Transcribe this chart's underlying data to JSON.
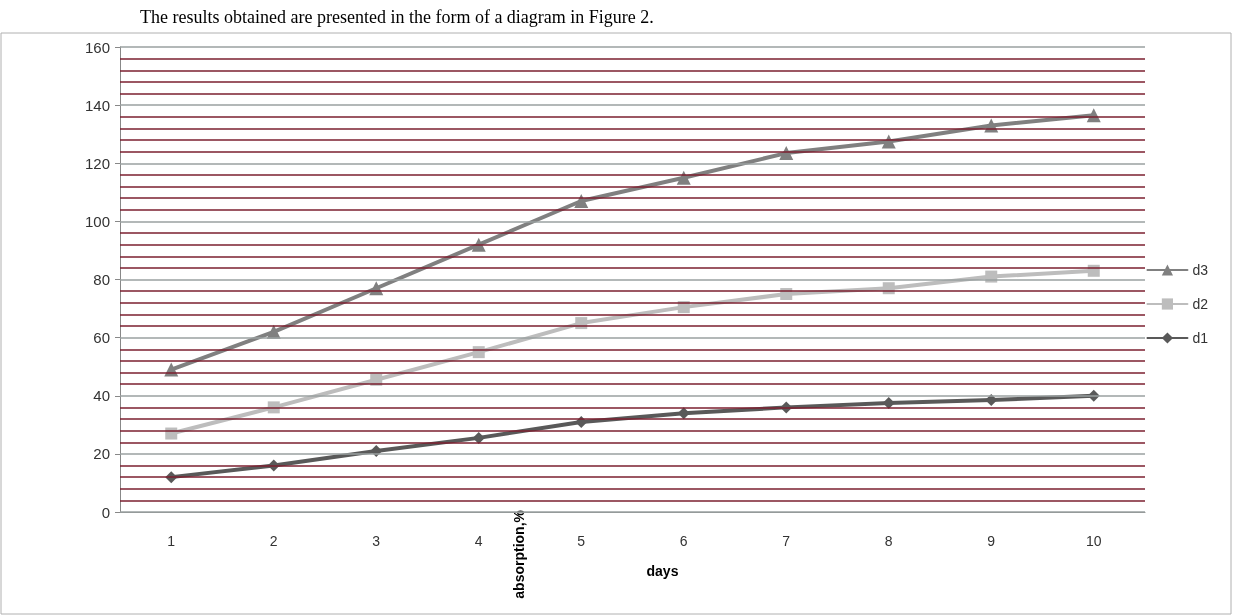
{
  "chart_data": {
    "type": "line",
    "categories": [
      "1",
      "2",
      "3",
      "4",
      "5",
      "6",
      "7",
      "8",
      "9",
      "10"
    ],
    "series": [
      {
        "name": "d3",
        "color": "#808080",
        "marker": "triangle",
        "values": [
          49,
          62,
          77,
          92,
          107,
          115,
          123.5,
          127.5,
          133,
          136.5
        ]
      },
      {
        "name": "d2",
        "color": "#bdbdbd",
        "marker": "square",
        "values": [
          27,
          36,
          45.5,
          55,
          65,
          70.5,
          75,
          77,
          81,
          83
        ]
      },
      {
        "name": "d1",
        "color": "#595959",
        "marker": "diamond",
        "values": [
          12,
          16,
          21,
          25.5,
          31,
          34,
          36,
          37.5,
          38.5,
          40
        ]
      }
    ],
    "xlabel": "days",
    "ylabel": "absorption,%",
    "annotations": [
      "The results obtained are presented in the form of a diagram in Figure 2."
    ],
    "ylim": [
      0,
      160
    ],
    "yticks": [
      0,
      {
        "value": 4,
        "label": null
      },
      {
        "value": 8,
        "label": null
      },
      {
        "value": 12,
        "label": null
      },
      {
        "value": 16,
        "label": null
      },
      20,
      {
        "value": 24,
        "label": null
      },
      {
        "value": 28,
        "label": null
      },
      {
        "value": 32,
        "label": null
      },
      {
        "value": 36,
        "label": null
      },
      40,
      {
        "value": 44,
        "label": null
      },
      {
        "value": 48,
        "label": null
      },
      {
        "value": 52,
        "label": null
      },
      {
        "value": 56,
        "label": null
      },
      60,
      {
        "value": 64,
        "label": null
      },
      {
        "value": 68,
        "label": null
      },
      {
        "value": 72,
        "label": null
      },
      {
        "value": 76,
        "label": null
      },
      80,
      {
        "value": 84,
        "label": null
      },
      {
        "value": 88,
        "label": null
      },
      {
        "value": 92,
        "label": null
      },
      {
        "value": 96,
        "label": null
      },
      100,
      {
        "value": 104,
        "label": null
      },
      {
        "value": 108,
        "label": null
      },
      {
        "value": 112,
        "label": null
      },
      {
        "value": 116,
        "label": null
      },
      120,
      {
        "value": 124,
        "label": null
      },
      {
        "value": 128,
        "label": null
      },
      {
        "value": 132,
        "label": null
      },
      {
        "value": 136,
        "label": null
      },
      140,
      {
        "value": 144,
        "label": null
      },
      {
        "value": 148,
        "label": null
      },
      {
        "value": 152,
        "label": null
      },
      {
        "value": 156,
        "label": null
      },
      160
    ],
    "grid": "y",
    "legend": "right"
  }
}
